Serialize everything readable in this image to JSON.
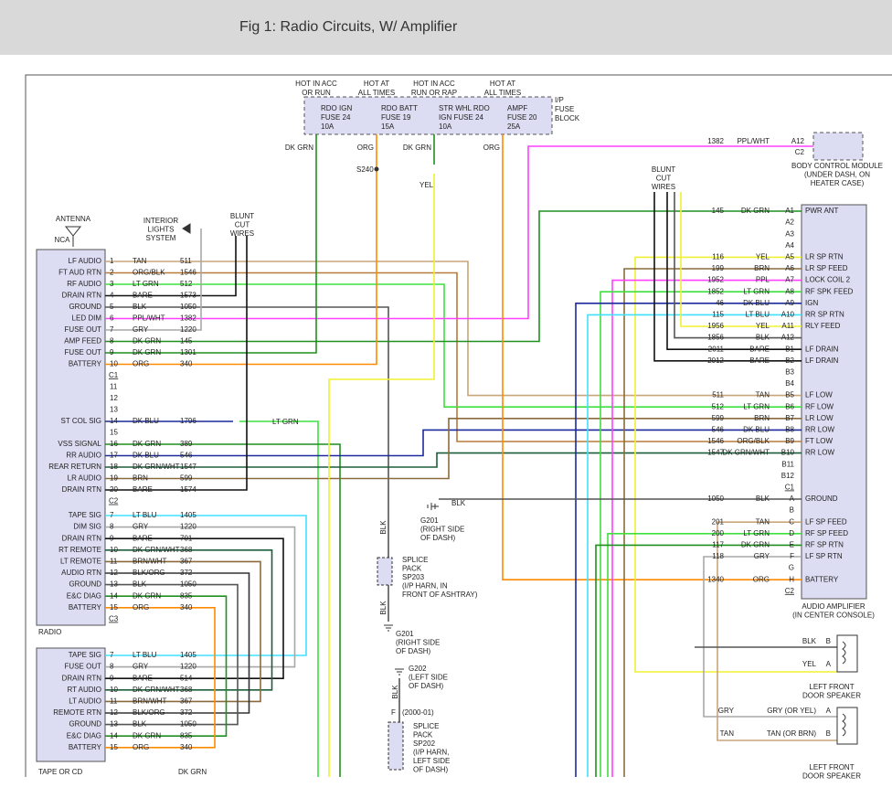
{
  "header": {
    "title": "Fig 1: Radio Circuits, W/ Amplifier"
  },
  "fuses": [
    {
      "hot": [
        "HOT IN ACC",
        "OR RUN"
      ],
      "label": [
        "RDO IGN",
        "FUSE 24",
        "10A"
      ],
      "wire": "DK GRN"
    },
    {
      "hot": [
        "HOT AT",
        "ALL TIMES"
      ],
      "label": [
        "RDO BATT",
        "FUSE 19",
        "15A"
      ],
      "wire": "ORG"
    },
    {
      "hot": [
        "HOT IN ACC",
        "RUN OR RAP"
      ],
      "label": [
        "STR WHL RDO",
        "IGN FUSE 24",
        "10A"
      ],
      "wire": "DK GRN"
    },
    {
      "hot": [
        "HOT AT",
        "ALL TIMES"
      ],
      "label": [
        "AMPF",
        "FUSE 20",
        "25A"
      ],
      "wire": "ORG"
    }
  ],
  "fuse_block": [
    "I/P",
    "FUSE",
    "BLOCK"
  ],
  "radio": {
    "rows": [
      {
        "pin": "1",
        "name": "LF AUDIO",
        "color": "TAN",
        "circuit": "511"
      },
      {
        "pin": "2",
        "name": "FT AUD RTN",
        "color": "ORG/BLK",
        "circuit": "1546"
      },
      {
        "pin": "3",
        "name": "RF AUDIO",
        "color": "LT GRN",
        "circuit": "512"
      },
      {
        "pin": "4",
        "name": "DRAIN RTN",
        "color": "BARE",
        "circuit": "1573"
      },
      {
        "pin": "5",
        "name": "GROUND",
        "color": "BLK",
        "circuit": "1050"
      },
      {
        "pin": "6",
        "name": "LED DIM",
        "color": "PPL/WHT",
        "circuit": "1382"
      },
      {
        "pin": "7",
        "name": "FUSE OUT",
        "color": "GRY",
        "circuit": "1220"
      },
      {
        "pin": "8",
        "name": "AMP FEED",
        "color": "DK GRN",
        "circuit": "145"
      },
      {
        "pin": "9",
        "name": "FUSE OUT",
        "color": "DK GRN",
        "circuit": "1301"
      },
      {
        "pin": "10",
        "name": "BATTERY",
        "color": "ORG",
        "circuit": "340"
      },
      {
        "connector": "C1"
      },
      {
        "pin": "11"
      },
      {
        "pin": "12"
      },
      {
        "pin": "13"
      },
      {
        "pin": "14",
        "name": "ST COL SIG",
        "color": "DK BLU",
        "circuit": "1796"
      },
      {
        "pin": "15"
      },
      {
        "pin": "16",
        "name": "VSS SIGNAL",
        "color": "DK GRN",
        "circuit": "389"
      },
      {
        "pin": "17",
        "name": "RR AUDIO",
        "color": "DK BLU",
        "circuit": "546"
      },
      {
        "pin": "18",
        "name": "REAR RETURN",
        "color": "DK GRN/WHT",
        "circuit": "1547"
      },
      {
        "pin": "19",
        "name": "LR AUDIO",
        "color": "BRN",
        "circuit": "599"
      },
      {
        "pin": "20",
        "name": "DRAIN RTN",
        "color": "BARE",
        "circuit": "1574"
      },
      {
        "connector": "C2"
      }
    ],
    "rows2": [
      {
        "pin": "7",
        "name": "TAPE SIG",
        "color": "LT BLU",
        "circuit": "1405"
      },
      {
        "pin": "8",
        "name": "DIM SIG",
        "color": "GRY",
        "circuit": "1220"
      },
      {
        "pin": "9",
        "name": "DRAIN RTN",
        "color": "BARE",
        "circuit": "701"
      },
      {
        "pin": "10",
        "name": "RT REMOTE",
        "color": "DK GRN/WHT",
        "circuit": "368"
      },
      {
        "pin": "11",
        "name": "LT REMOTE",
        "color": "BRN/WHT",
        "circuit": "367"
      },
      {
        "pin": "12",
        "name": "AUDIO RTN",
        "color": "BLK/ORG",
        "circuit": "372"
      },
      {
        "pin": "13",
        "name": "GROUND",
        "color": "BLK",
        "circuit": "1050"
      },
      {
        "pin": "14",
        "name": "E&C DIAG",
        "color": "DK GRN",
        "circuit": "835"
      },
      {
        "pin": "15",
        "name": "BATTERY",
        "color": "ORG",
        "circuit": "340"
      },
      {
        "connector": "C3"
      }
    ]
  },
  "tape": {
    "rows": [
      {
        "pin": "7",
        "name": "TAPE SIG",
        "color": "LT BLU",
        "circuit": "1405"
      },
      {
        "pin": "8",
        "name": "FUSE OUT",
        "color": "GRY",
        "circuit": "1220"
      },
      {
        "pin": "9",
        "name": "DRAIN RTN",
        "color": "BARE",
        "circuit": "514"
      },
      {
        "pin": "10",
        "name": "RT AUDIO",
        "color": "DK GRN/WHT",
        "circuit": "368"
      },
      {
        "pin": "11",
        "name": "LT AUDIO",
        "color": "BRN/WHT",
        "circuit": "367"
      },
      {
        "pin": "12",
        "name": "REMOTE RTN",
        "color": "BLK/ORG",
        "circuit": "372"
      },
      {
        "pin": "13",
        "name": "GROUND",
        "color": "BLK",
        "circuit": "1050"
      },
      {
        "pin": "14",
        "name": "E&C DIAG",
        "color": "DK GRN",
        "circuit": "835"
      },
      {
        "pin": "15",
        "name": "BATTERY",
        "color": "ORG",
        "circuit": "340"
      }
    ]
  },
  "amplifier": {
    "rows": [
      {
        "circuit": "145",
        "color": "DK GRN",
        "pin": "A1",
        "name": "PWR ANT"
      },
      {
        "pin": "A2"
      },
      {
        "pin": "A3"
      },
      {
        "pin": "A4"
      },
      {
        "circuit": "116",
        "color": "YEL",
        "pin": "A5",
        "name": "LR SP RTN"
      },
      {
        "circuit": "199",
        "color": "BRN",
        "pin": "A6",
        "name": "LR SP FEED"
      },
      {
        "circuit": "1952",
        "color": "PPL",
        "pin": "A7",
        "name": "LOCK COIL 2"
      },
      {
        "circuit": "1852",
        "color": "LT GRN",
        "pin": "A8",
        "name": "RF SPK FEED"
      },
      {
        "circuit": "46",
        "color": "DK BLU",
        "pin": "A9",
        "name": "IGN"
      },
      {
        "circuit": "115",
        "color": "LT BLU",
        "pin": "A10",
        "name": "RR SP RTN"
      },
      {
        "circuit": "1956",
        "color": "YEL",
        "pin": "A11",
        "name": "RLY FEED"
      },
      {
        "circuit": "1856",
        "color": "BLK",
        "pin": "A12"
      },
      {
        "circuit": "2011",
        "color": "BARE",
        "pin": "B1",
        "name": "LF DRAIN"
      },
      {
        "circuit": "2012",
        "color": "BARE",
        "pin": "B2",
        "name": "LF DRAIN"
      },
      {
        "pin": "B3"
      },
      {
        "pin": "B4"
      },
      {
        "circuit": "511",
        "color": "TAN",
        "pin": "B5",
        "name": "LF LOW"
      },
      {
        "circuit": "512",
        "color": "LT GRN",
        "pin": "B6",
        "name": "RF LOW"
      },
      {
        "circuit": "599",
        "color": "BRN",
        "pin": "B7",
        "name": "LR LOW"
      },
      {
        "circuit": "546",
        "color": "DK BLU",
        "pin": "B8",
        "name": "RR LOW"
      },
      {
        "circuit": "1546",
        "color": "ORG/BLK",
        "pin": "B9",
        "name": "FT LOW"
      },
      {
        "circuit": "1547",
        "color": "DK GRN/WHT",
        "pin": "B10",
        "name": "RR LOW"
      },
      {
        "pin": "B11"
      },
      {
        "pin": "B12"
      },
      {
        "connector": "C1"
      },
      {
        "circuit": "1050",
        "color": "BLK",
        "pin": "A",
        "name": "GROUND"
      },
      {
        "pin": "B"
      },
      {
        "circuit": "201",
        "color": "TAN",
        "pin": "C",
        "name": "LF SP FEED"
      },
      {
        "circuit": "200",
        "color": "LT GRN",
        "pin": "D",
        "name": "RF SP FEED"
      },
      {
        "circuit": "117",
        "color": "DK GRN",
        "pin": "E",
        "name": "RF SP RTN"
      },
      {
        "circuit": "118",
        "color": "GRY",
        "pin": "F",
        "name": "LF SP RTN"
      },
      {
        "pin": "G"
      },
      {
        "circuit": "1340",
        "color": "ORG",
        "pin": "H",
        "name": "BATTERY"
      },
      {
        "connector": "C2"
      }
    ]
  },
  "notes": [
    "S240",
    "YEL",
    [
      "BLUNT",
      "CUT",
      "WIRES"
    ],
    [
      "BODY CONTROL MODULE",
      "(UNDER DASH, ON",
      "HEATER CASE)"
    ],
    "1382",
    "PPL/WHT",
    "A12",
    "C2",
    "ANTENNA",
    "NCA",
    [
      "INTERIOR",
      "LIGHTS",
      "SYSTEM"
    ],
    [
      "BLUNT",
      "CUT",
      "WIRES"
    ],
    "RADIO",
    "TAPE OR CD",
    "LT GRN",
    "BLK",
    [
      "G201",
      "(RIGHT SIDE",
      "OF DASH)"
    ],
    "BLK",
    [
      "SPLICE",
      "PACK",
      "SP203",
      "(I/P HARN, IN",
      "FRONT OF ASHTRAY)"
    ],
    "BLK",
    [
      "G201",
      "(RIGHT SIDE",
      "OF DASH)"
    ],
    [
      "G202",
      "(LEFT SIDE",
      "OF DASH)"
    ],
    "BLK",
    "F",
    "(2000-01)",
    [
      "SPLICE",
      "PACK",
      "SP202",
      "(I/P HARN,",
      "LEFT SIDE",
      "OF DASH)"
    ],
    "DK GRN",
    [
      "AUDIO AMPLIFIER",
      "(IN CENTER CONSOLE)"
    ],
    "BLK",
    "B",
    "YEL",
    "A",
    [
      "LEFT FRONT",
      "DOOR SPEAKER"
    ],
    "GRY",
    "GRY (OR YEL)",
    "A",
    "TAN",
    "TAN (OR BRN)",
    "B",
    [
      "LEFT FRONT",
      "DOOR SPEAKER"
    ]
  ]
}
